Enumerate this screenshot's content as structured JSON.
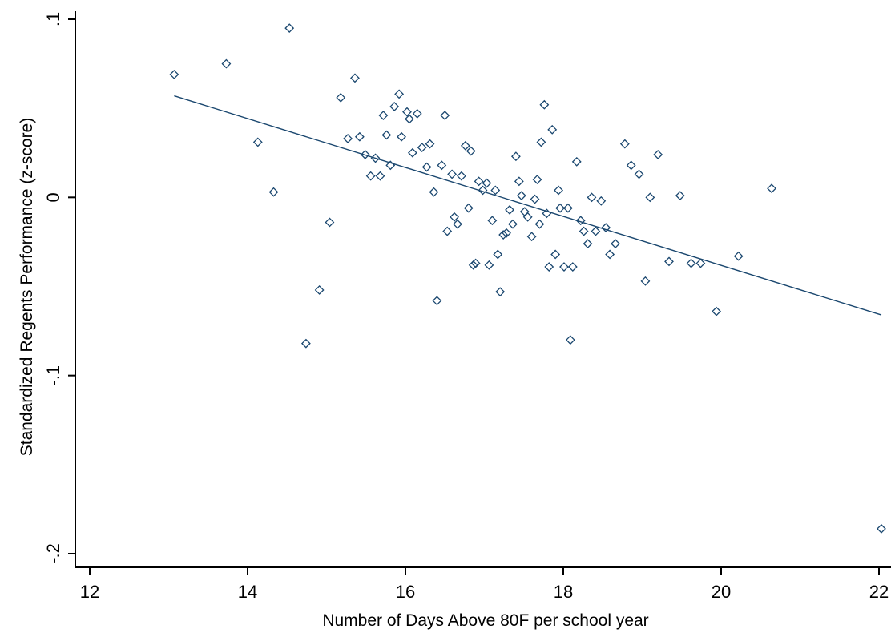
{
  "chart_data": {
    "type": "scatter",
    "title": "",
    "xlabel": "Number of Days Above 80F per school year",
    "ylabel": "Standardized Regents Performance (z-score)",
    "xlim": [
      12,
      22
    ],
    "ylim": [
      -0.2,
      0.1
    ],
    "xticks": [
      12,
      14,
      16,
      18,
      20,
      22
    ],
    "xtick_labels": [
      "12",
      "14",
      "16",
      "18",
      "20",
      "22"
    ],
    "yticks": [
      -0.2,
      -0.1,
      0,
      0.1
    ],
    "ytick_labels": [
      "-.2",
      "-.1",
      "0",
      ".1"
    ],
    "grid": false,
    "legend": "none",
    "marker": "hollow-diamond",
    "colors": {
      "marker": "#1a476f",
      "fit_line": "#1a476f",
      "axis": "#000000",
      "background": "#ffffff"
    },
    "points": [
      [
        13.07,
        0.069
      ],
      [
        13.73,
        0.075
      ],
      [
        14.13,
        0.031
      ],
      [
        14.33,
        0.003
      ],
      [
        14.53,
        0.095
      ],
      [
        14.74,
        -0.082
      ],
      [
        14.91,
        -0.052
      ],
      [
        15.04,
        -0.014
      ],
      [
        15.18,
        0.056
      ],
      [
        15.27,
        0.033
      ],
      [
        15.36,
        0.067
      ],
      [
        15.42,
        0.034
      ],
      [
        15.49,
        0.024
      ],
      [
        15.56,
        0.012
      ],
      [
        15.62,
        0.022
      ],
      [
        15.68,
        0.012
      ],
      [
        15.72,
        0.046
      ],
      [
        15.76,
        0.035
      ],
      [
        15.81,
        0.018
      ],
      [
        15.86,
        0.051
      ],
      [
        15.92,
        0.058
      ],
      [
        15.95,
        0.034
      ],
      [
        16.02,
        0.048
      ],
      [
        16.05,
        0.044
      ],
      [
        16.09,
        0.025
      ],
      [
        16.15,
        0.047
      ],
      [
        16.21,
        0.028
      ],
      [
        16.27,
        0.017
      ],
      [
        16.31,
        0.03
      ],
      [
        16.36,
        0.003
      ],
      [
        16.4,
        -0.058
      ],
      [
        16.46,
        0.018
      ],
      [
        16.5,
        0.046
      ],
      [
        16.53,
        -0.019
      ],
      [
        16.59,
        0.013
      ],
      [
        16.62,
        -0.011
      ],
      [
        16.66,
        -0.015
      ],
      [
        16.71,
        0.012
      ],
      [
        16.76,
        0.029
      ],
      [
        16.8,
        -0.006
      ],
      [
        16.83,
        0.026
      ],
      [
        16.86,
        -0.038
      ],
      [
        16.89,
        -0.037
      ],
      [
        16.93,
        0.009
      ],
      [
        16.98,
        0.004
      ],
      [
        17.03,
        0.008
      ],
      [
        17.06,
        -0.038
      ],
      [
        17.1,
        -0.013
      ],
      [
        17.14,
        0.004
      ],
      [
        17.17,
        -0.032
      ],
      [
        17.2,
        -0.053
      ],
      [
        17.24,
        -0.021
      ],
      [
        17.28,
        -0.02
      ],
      [
        17.32,
        -0.007
      ],
      [
        17.36,
        -0.015
      ],
      [
        17.4,
        0.023
      ],
      [
        17.44,
        0.009
      ],
      [
        17.47,
        0.001
      ],
      [
        17.51,
        -0.008
      ],
      [
        17.55,
        -0.011
      ],
      [
        17.6,
        -0.022
      ],
      [
        17.64,
        -0.001
      ],
      [
        17.67,
        0.01
      ],
      [
        17.7,
        -0.015
      ],
      [
        17.72,
        0.031
      ],
      [
        17.76,
        0.052
      ],
      [
        17.79,
        -0.009
      ],
      [
        17.82,
        -0.039
      ],
      [
        17.86,
        0.038
      ],
      [
        17.9,
        -0.032
      ],
      [
        17.94,
        0.004
      ],
      [
        17.96,
        -0.006
      ],
      [
        18.01,
        -0.039
      ],
      [
        18.06,
        -0.006
      ],
      [
        18.09,
        -0.08
      ],
      [
        18.12,
        -0.039
      ],
      [
        18.17,
        0.02
      ],
      [
        18.22,
        -0.013
      ],
      [
        18.26,
        -0.019
      ],
      [
        18.31,
        -0.026
      ],
      [
        18.36,
        0.0
      ],
      [
        18.41,
        -0.019
      ],
      [
        18.48,
        -0.002
      ],
      [
        18.54,
        -0.017
      ],
      [
        18.59,
        -0.032
      ],
      [
        18.66,
        -0.026
      ],
      [
        18.78,
        0.03
      ],
      [
        18.86,
        0.018
      ],
      [
        18.96,
        0.013
      ],
      [
        19.04,
        -0.047
      ],
      [
        19.1,
        0.0
      ],
      [
        19.2,
        0.024
      ],
      [
        19.34,
        -0.036
      ],
      [
        19.48,
        0.001
      ],
      [
        19.62,
        -0.037
      ],
      [
        19.74,
        -0.037
      ],
      [
        19.94,
        -0.064
      ],
      [
        20.22,
        -0.033
      ],
      [
        20.64,
        0.005
      ],
      [
        22.03,
        -0.186
      ]
    ],
    "fit_line": {
      "x": [
        13.07,
        22.03
      ],
      "y": [
        0.057,
        -0.066
      ]
    }
  }
}
